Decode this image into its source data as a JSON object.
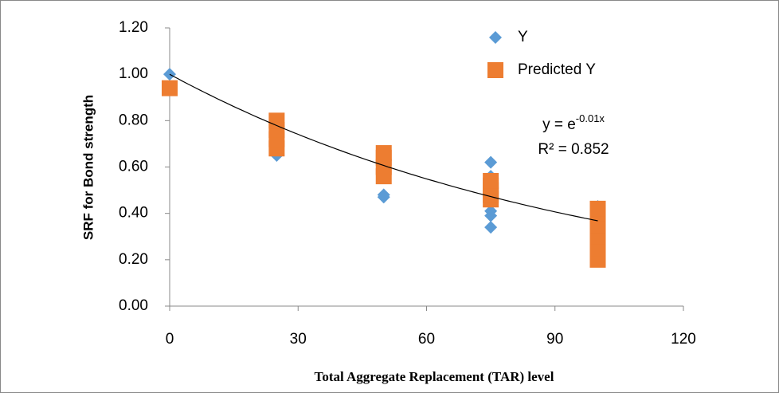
{
  "chart_data": {
    "type": "scatter",
    "x_label": "Total Aggregate Replacement (TAR) level",
    "y_label": "SRF for Bond strength",
    "xlim": [
      0,
      120
    ],
    "xticks": [
      0,
      30,
      60,
      90,
      120
    ],
    "ylim": [
      0,
      1.2
    ],
    "yticks": [
      {
        "value": 0,
        "label": "0.00"
      },
      {
        "value": 0.2,
        "label": "0.20"
      },
      {
        "value": 0.4,
        "label": "0.40"
      },
      {
        "value": 0.6,
        "label": "0.60"
      },
      {
        "value": 0.8,
        "label": "0.80"
      },
      {
        "value": 1.0,
        "label": "1.00"
      },
      {
        "value": 1.2,
        "label": "1.20"
      }
    ],
    "series": [
      {
        "name": "Y",
        "color": "#5b9bd5",
        "marker": "diamond",
        "x": [
          0,
          25,
          25,
          50,
          50,
          75,
          75,
          75,
          75,
          75,
          100,
          100
        ],
        "values": [
          1.0,
          0.65,
          0.75,
          0.48,
          0.47,
          0.62,
          0.56,
          0.41,
          0.39,
          0.34,
          0.43,
          0.3
        ]
      },
      {
        "name": "Predicted Y",
        "color": "#ed7d31",
        "marker": "square",
        "x": [
          0,
          25,
          25,
          25,
          25,
          50,
          50,
          50,
          50,
          75,
          75,
          75,
          75,
          75,
          100,
          100,
          100,
          100,
          100,
          100
        ],
        "values": [
          0.94,
          0.68,
          0.72,
          0.76,
          0.8,
          0.56,
          0.6,
          0.64,
          0.66,
          0.46,
          0.48,
          0.5,
          0.52,
          0.54,
          0.2,
          0.25,
          0.3,
          0.35,
          0.4,
          0.42
        ]
      }
    ],
    "trendline": {
      "type": "exponential",
      "coefficient": 1,
      "rate": -0.01,
      "color": "#000000"
    },
    "equation": {
      "text": "y = e",
      "exponent": "-0.01x"
    },
    "r_squared": "R² = 0.852",
    "legend": "top-right"
  }
}
